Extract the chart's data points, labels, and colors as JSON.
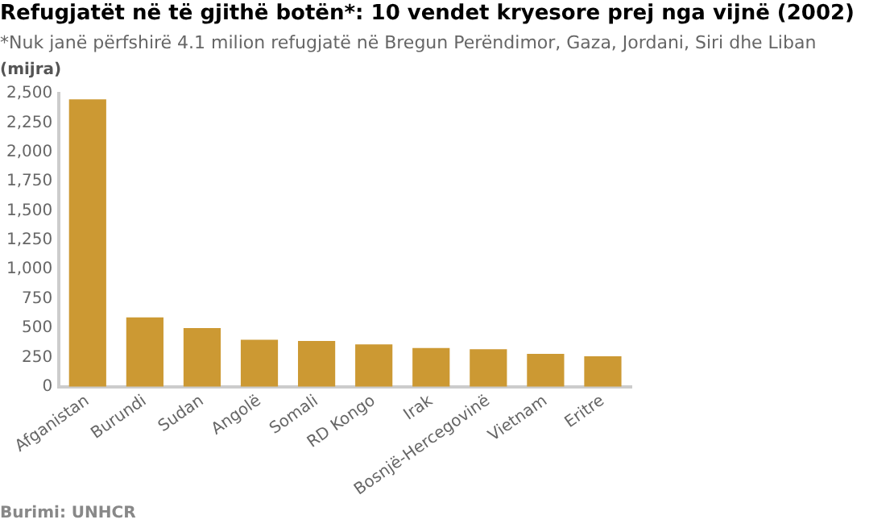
{
  "chart_data": {
    "type": "bar",
    "title": "Refugjatët në të gjithë botën*: 10 vendet kryesore prej nga vijnë (2002)",
    "subtitle": "*Nuk janë përfshirë 4.1 milion refugjatë në Bregun Perëndimor, Gaza, Jordani, Siri dhe Liban",
    "ylabel": "(mijra)",
    "annotations": [
      "Burimi: UNHCR"
    ],
    "categories": [
      "Afganistan",
      "Burundi",
      "Sudan",
      "Angolë",
      "Somali",
      "RD Kongo",
      "Irak",
      "Bosnjë-Hercegovinë",
      "Vietnam",
      "Eritre"
    ],
    "values": [
      2450,
      590,
      500,
      400,
      390,
      360,
      330,
      320,
      280,
      260
    ],
    "color": "#cc9933",
    "ylim": [
      0,
      2500
    ],
    "yticks": [
      0,
      250,
      500,
      750,
      {
        "value": 1000,
        "label": "1,000"
      },
      {
        "value": 1250,
        "label": "1,250"
      },
      {
        "value": 1500,
        "label": "1,500"
      },
      {
        "value": 1750,
        "label": "1,750"
      },
      {
        "value": 2000,
        "label": "2,000"
      },
      {
        "value": 2250,
        "label": "2,250"
      },
      {
        "value": 2500,
        "label": "2,500"
      }
    ],
    "grid": false,
    "legend": false
  }
}
